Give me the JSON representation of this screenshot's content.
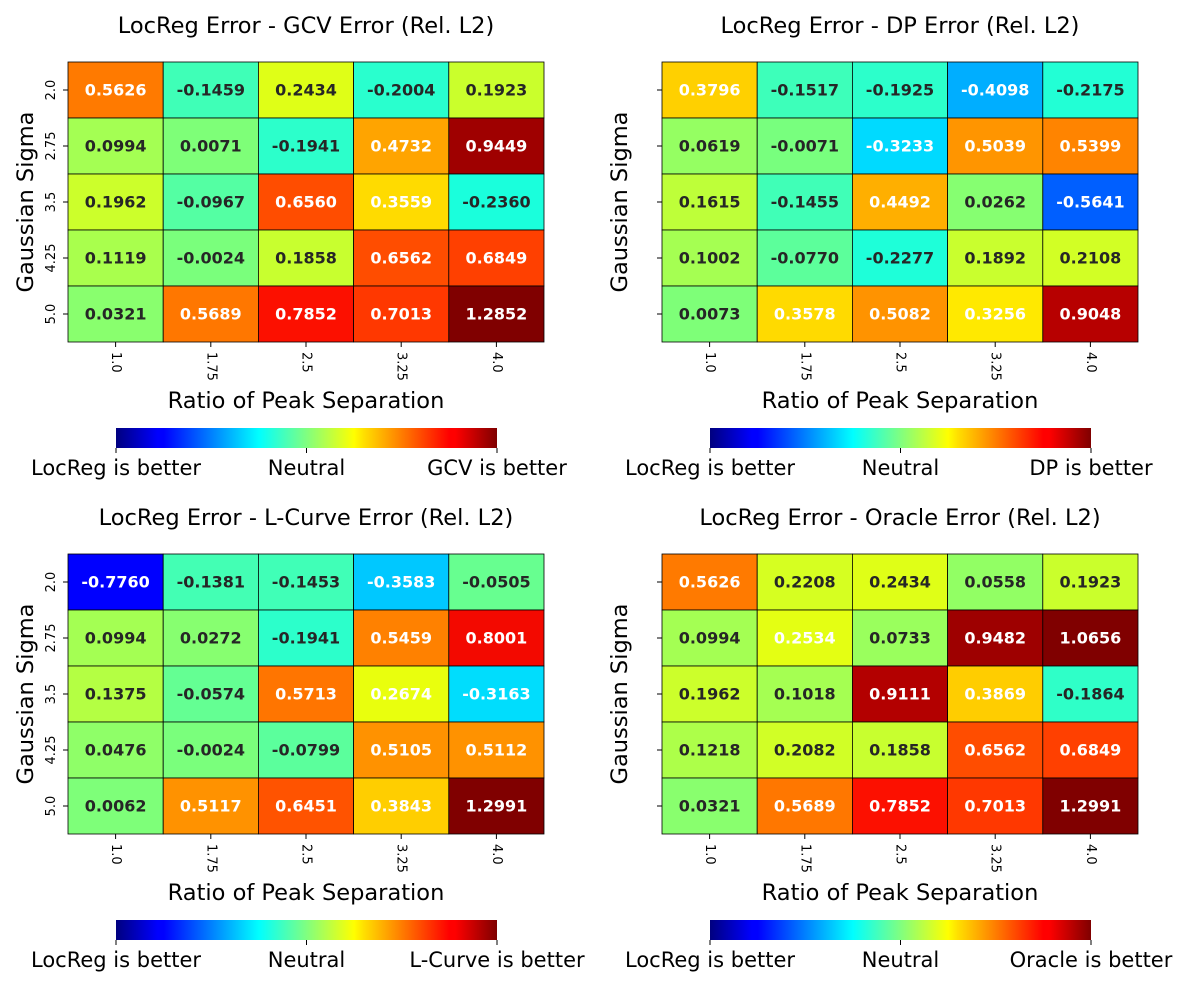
{
  "figure": {
    "colormap": "jet",
    "annotation_threshold": 0.25,
    "annotation_colors": {
      "dark": "#262626",
      "light": "#ffffff"
    }
  },
  "chart_data": [
    {
      "type": "heatmap",
      "title": "LocReg Error - GCV Error (Rel. L2)",
      "xlabel": "Ratio of Peak Separation",
      "ylabel": "Gaussian Sigma",
      "x": [
        "1.0",
        "1.75",
        "2.5",
        "3.25",
        "4.0"
      ],
      "y": [
        "2.0",
        "2.75",
        "3.5",
        "4.25",
        "5.0"
      ],
      "show_y_tick_labels": true,
      "values": [
        [
          0.5626,
          -0.1459,
          0.2434,
          -0.2004,
          0.1923
        ],
        [
          0.0994,
          0.0071,
          -0.1941,
          0.4732,
          0.9449
        ],
        [
          0.1962,
          -0.0967,
          0.656,
          0.3559,
          -0.236
        ],
        [
          0.1119,
          -0.0024,
          0.1858,
          0.6562,
          0.6849
        ],
        [
          0.0321,
          0.5689,
          0.7852,
          0.7013,
          1.2852
        ]
      ],
      "colorbar": {
        "left_label": "LocReg is better",
        "center_label": "Neutral",
        "right_label": "GCV is better"
      }
    },
    {
      "type": "heatmap",
      "title": "LocReg Error - DP Error (Rel. L2)",
      "xlabel": "Ratio of Peak Separation",
      "ylabel": "Gaussian Sigma",
      "x": [
        "1.0",
        "1.75",
        "2.5",
        "3.25",
        "4.0"
      ],
      "y": [
        "2.0",
        "2.75",
        "3.5",
        "4.25",
        "5.0"
      ],
      "show_y_tick_labels": false,
      "values": [
        [
          0.3796,
          -0.1517,
          -0.1925,
          -0.4098,
          -0.2175
        ],
        [
          0.0619,
          -0.0071,
          -0.3233,
          0.5039,
          0.5399
        ],
        [
          0.1615,
          -0.1455,
          0.4492,
          0.0262,
          -0.5641
        ],
        [
          0.1002,
          -0.077,
          -0.2277,
          0.1892,
          0.2108
        ],
        [
          0.0073,
          0.3578,
          0.5082,
          0.3256,
          0.9048
        ]
      ],
      "colorbar": {
        "left_label": "LocReg is better",
        "center_label": "Neutral",
        "right_label": "DP is better"
      }
    },
    {
      "type": "heatmap",
      "title": "LocReg Error - L-Curve Error (Rel. L2)",
      "xlabel": "Ratio of Peak Separation",
      "ylabel": "Gaussian Sigma",
      "x": [
        "1.0",
        "1.75",
        "2.5",
        "3.25",
        "4.0"
      ],
      "y": [
        "2.0",
        "2.75",
        "3.5",
        "4.25",
        "5.0"
      ],
      "show_y_tick_labels": true,
      "values": [
        [
          -0.776,
          -0.1381,
          -0.1453,
          -0.3583,
          -0.0505
        ],
        [
          0.0994,
          0.0272,
          -0.1941,
          0.5459,
          0.8001
        ],
        [
          0.1375,
          -0.0574,
          0.5713,
          0.2674,
          -0.3163
        ],
        [
          0.0476,
          -0.0024,
          -0.0799,
          0.5105,
          0.5112
        ],
        [
          0.0062,
          0.5117,
          0.6451,
          0.3843,
          1.2991
        ]
      ],
      "colorbar": {
        "left_label": "LocReg is better",
        "center_label": "Neutral",
        "right_label": "L-Curve is better"
      }
    },
    {
      "type": "heatmap",
      "title": "LocReg Error - Oracle Error (Rel. L2)",
      "xlabel": "Ratio of Peak Separation",
      "ylabel": "Gaussian Sigma",
      "x": [
        "1.0",
        "1.75",
        "2.5",
        "3.25",
        "4.0"
      ],
      "y": [
        "2.0",
        "2.75",
        "3.5",
        "4.25",
        "5.0"
      ],
      "show_y_tick_labels": false,
      "values": [
        [
          0.5626,
          0.2208,
          0.2434,
          0.0558,
          0.1923
        ],
        [
          0.0994,
          0.2534,
          0.0733,
          0.9482,
          1.0656
        ],
        [
          0.1962,
          0.1018,
          0.9111,
          0.3869,
          -0.1864
        ],
        [
          0.1218,
          0.2082,
          0.1858,
          0.6562,
          0.6849
        ],
        [
          0.0321,
          0.5689,
          0.7852,
          0.7013,
          1.2991
        ]
      ],
      "colorbar": {
        "left_label": "LocReg is better",
        "center_label": "Neutral",
        "right_label": "Oracle is better"
      }
    }
  ]
}
